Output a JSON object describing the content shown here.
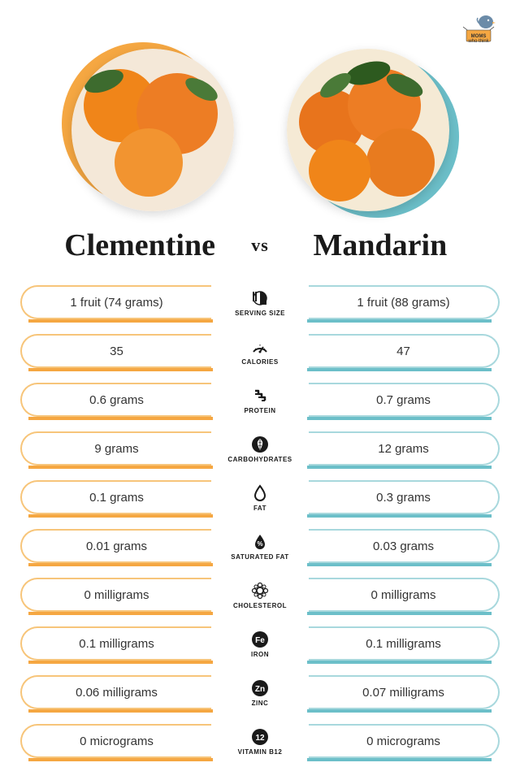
{
  "logo": {
    "brand": "MOMS",
    "subtitle": "who think"
  },
  "colors": {
    "left_accent": "#f5a742",
    "left_pill_border": "#f7c57a",
    "left_underline": "#f5a742",
    "right_accent": "#6cbfc9",
    "right_pill_border": "#a8d8dd",
    "right_underline": "#6cbfc9",
    "text": "#1a1a1a",
    "bg": "#ffffff"
  },
  "left_fruit": {
    "name": "Clementine",
    "image_bg": "#ed7d24"
  },
  "right_fruit": {
    "name": "Mandarin",
    "image_bg": "#e87b1f"
  },
  "vs": "vs",
  "rows": [
    {
      "icon": "serving",
      "label": "SERVING SIZE",
      "left": "1 fruit (74 grams)",
      "right": "1 fruit (88 grams)"
    },
    {
      "icon": "calories",
      "label": "CALORIES",
      "left": "35",
      "right": "47"
    },
    {
      "icon": "protein",
      "label": "PROTEIN",
      "left": "0.6 grams",
      "right": "0.7 grams"
    },
    {
      "icon": "carbs",
      "label": "CARBOHYDRATES",
      "left": "9 grams",
      "right": "12 grams"
    },
    {
      "icon": "fat",
      "label": "FAT",
      "left": "0.1 grams",
      "right": "0.3 grams"
    },
    {
      "icon": "satfat",
      "label": "SATURATED FAT",
      "left": "0.01 grams",
      "right": "0.03 grams"
    },
    {
      "icon": "cholesterol",
      "label": "CHOLESTEROL",
      "left": "0 milligrams",
      "right": "0 milligrams"
    },
    {
      "icon": "iron",
      "label": "IRON",
      "left": "0.1 milligrams",
      "right": "0.1 milligrams"
    },
    {
      "icon": "zinc",
      "label": "ZINC",
      "left": "0.06 milligrams",
      "right": "0.07 milligrams"
    },
    {
      "icon": "b12",
      "label": "VITAMIN B12",
      "left": "0 micrograms",
      "right": "0 micrograms"
    }
  ]
}
